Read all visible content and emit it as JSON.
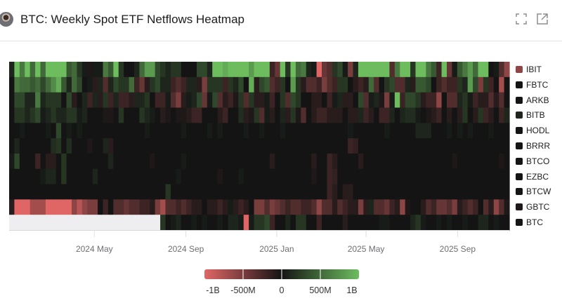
{
  "header": {
    "title": "BTC: Weekly Spot ETF Netflows Heatmap",
    "icons": [
      "avatar",
      "fullscreen-icon",
      "open-external-icon"
    ]
  },
  "colors": {
    "negative": "#e06666",
    "zero": "#141414",
    "positive": "#6dbd5f",
    "missing": "#eeeef0"
  },
  "chart_data": {
    "type": "heatmap",
    "title": "BTC: Weekly Spot ETF Netflows Heatmap",
    "x_start_week": "2024-01-11",
    "x_interval": "weekly",
    "x_ticks": [
      {
        "label": "2024 May",
        "date": "2024-05-01"
      },
      {
        "label": "2024 Sep",
        "date": "2024-09-01"
      },
      {
        "label": "2025 Jan",
        "date": "2025-01-01"
      },
      {
        "label": "2025 May",
        "date": "2025-05-01"
      },
      {
        "label": "2025 Sep",
        "date": "2025-09-01"
      }
    ],
    "value_unit": "USD millions",
    "color_range": [
      -1000,
      1000
    ],
    "colorbar_ticks": [
      {
        "label": "-1B",
        "value": -1000
      },
      {
        "label": "-500M",
        "value": -500
      },
      {
        "label": "0",
        "value": 0
      },
      {
        "label": "500M",
        "value": 500
      },
      {
        "label": "1B",
        "value": 1000
      }
    ],
    "legend_position": "right",
    "series": [
      {
        "name": "IBIT",
        "values": [
          100,
          1000,
          600,
          1000,
          500,
          1000,
          500,
          1000,
          1000,
          1000,
          1000,
          400,
          500,
          200,
          50,
          -50,
          50,
          50,
          600,
          400,
          1000,
          200,
          0,
          0,
          100,
          500,
          800,
          800,
          300,
          200,
          100,
          200,
          200,
          0,
          0,
          0,
          300,
          300,
          100,
          1000,
          1000,
          900,
          1000,
          1000,
          1000,
          1000,
          800,
          1000,
          1000,
          1000,
          -200,
          -400,
          1000,
          200,
          1000,
          500,
          600,
          100,
          50,
          -1000,
          -400,
          -300,
          200,
          300,
          50,
          -500,
          100,
          1000,
          1000,
          1000,
          1000,
          1000,
          1000,
          -300,
          600,
          1000,
          1000,
          200,
          1000,
          1000,
          600,
          400,
          -200,
          1000,
          -400,
          50,
          400,
          600,
          800,
          500,
          1000,
          1000,
          0,
          50,
          -300,
          -600
        ]
      },
      {
        "name": "FBTC",
        "values": [
          0,
          600,
          500,
          500,
          400,
          500,
          300,
          500,
          700,
          900,
          400,
          100,
          500,
          300,
          0,
          50,
          -100,
          100,
          -300,
          100,
          300,
          200,
          200,
          500,
          -200,
          -400,
          -100,
          200,
          300,
          100,
          100,
          -200,
          -300,
          -200,
          100,
          100,
          -100,
          -500,
          200,
          200,
          200,
          -200,
          200,
          100,
          300,
          0,
          900,
          -100,
          300,
          400,
          -300,
          -200,
          200,
          0,
          800,
          200,
          -100,
          -300,
          -300,
          -200,
          -500,
          -300,
          -200,
          200,
          200,
          0,
          -100,
          -200,
          -100,
          500,
          -300,
          0,
          200,
          300,
          -300,
          -300,
          100,
          -100,
          400,
          400,
          300,
          0,
          -200,
          -300,
          -200,
          -200,
          200,
          100,
          800,
          300,
          -500,
          200,
          -200,
          0,
          -700,
          0
        ]
      },
      {
        "name": "ARKB",
        "values": [
          0,
          300,
          300,
          100,
          100,
          600,
          100,
          200,
          200,
          200,
          0,
          300,
          -100,
          0,
          100,
          -200,
          100,
          -100,
          200,
          -200,
          100,
          -200,
          -200,
          -100,
          100,
          100,
          200,
          0,
          -200,
          -200,
          50,
          -300,
          -500,
          -100,
          50,
          100,
          300,
          -400,
          50,
          300,
          -300,
          -100,
          -200,
          -50,
          200,
          -300,
          200,
          -100,
          -100,
          50,
          -200,
          0,
          200,
          -300,
          300,
          200,
          0,
          0,
          -100,
          -100,
          0,
          -200,
          50,
          100,
          -100,
          -100,
          0,
          300,
          -300,
          50,
          100,
          -50,
          -500,
          50,
          1000,
          -200,
          300,
          300,
          200,
          -100,
          -200,
          -200,
          -600,
          0,
          -300,
          -300,
          100,
          200,
          50,
          -200,
          -100,
          -100,
          -300,
          -100,
          -300,
          0
        ]
      },
      {
        "name": "BITB",
        "values": [
          0,
          200,
          200,
          100,
          200,
          300,
          50,
          100,
          200,
          100,
          100,
          200,
          200,
          50,
          100,
          0,
          0,
          0,
          -50,
          -50,
          0,
          200,
          0,
          0,
          0,
          200,
          100,
          50,
          0,
          -100,
          -50,
          0,
          -50,
          -50,
          -100,
          -200,
          -200,
          0,
          0,
          0,
          -100,
          -200,
          0,
          0,
          150,
          -100,
          -50,
          200,
          -300,
          50,
          -100,
          0,
          100,
          -100,
          200,
          -50,
          -300,
          0,
          -100,
          -200,
          -200,
          -100,
          -100,
          -100,
          0,
          -100,
          -100,
          100,
          -200,
          -100,
          0,
          -200,
          -200,
          100,
          0,
          100,
          150,
          150,
          50,
          0,
          -50,
          -100,
          -200,
          0,
          -100,
          0,
          -100,
          200,
          0,
          -100,
          200,
          -200,
          -100,
          0,
          -200,
          100
        ]
      },
      {
        "name": "HODL",
        "values": [
          0,
          0,
          50,
          0,
          0,
          0,
          0,
          50,
          0,
          300,
          0,
          50,
          0,
          50,
          0,
          0,
          0,
          0,
          0,
          0,
          0,
          0,
          0,
          0,
          0,
          0,
          50,
          0,
          0,
          0,
          0,
          0,
          0,
          50,
          0,
          0,
          0,
          0,
          50,
          0,
          50,
          0,
          0,
          0,
          0,
          50,
          0,
          0,
          50,
          0,
          0,
          0,
          50,
          0,
          0,
          0,
          0,
          0,
          0,
          0,
          0,
          0,
          0,
          0,
          0,
          50,
          0,
          0,
          0,
          0,
          0,
          0,
          50,
          0,
          0,
          0,
          0,
          0,
          100,
          100,
          100,
          0,
          0,
          0,
          50,
          0,
          50,
          0,
          50,
          0,
          0,
          0,
          50,
          0,
          0,
          0
        ]
      },
      {
        "name": "BRRR",
        "values": [
          0,
          100,
          0,
          0,
          0,
          0,
          0,
          0,
          150,
          200,
          0,
          150,
          0,
          0,
          0,
          -50,
          0,
          0,
          100,
          -100,
          0,
          0,
          0,
          0,
          0,
          0,
          0,
          0,
          0,
          0,
          0,
          0,
          0,
          0,
          0,
          0,
          0,
          0,
          0,
          0,
          0,
          0,
          0,
          0,
          0,
          0,
          0,
          0,
          0,
          0,
          0,
          0,
          0,
          0,
          0,
          0,
          0,
          0,
          0,
          0,
          0,
          0,
          0,
          0,
          0,
          -200,
          -150,
          0,
          0,
          0,
          0,
          0,
          0,
          0,
          0,
          0,
          0,
          0,
          0,
          0,
          0,
          0,
          0,
          0,
          0,
          0,
          0,
          0,
          0,
          0,
          0,
          0,
          0,
          0,
          0,
          0
        ]
      },
      {
        "name": "BTCO",
        "values": [
          50,
          300,
          0,
          0,
          0,
          -200,
          0,
          -100,
          -100,
          0,
          200,
          0,
          0,
          0,
          0,
          0,
          0,
          0,
          0,
          100,
          0,
          0,
          0,
          0,
          0,
          0,
          0,
          -50,
          0,
          0,
          0,
          0,
          0,
          50,
          0,
          0,
          0,
          0,
          0,
          0,
          0,
          0,
          0,
          0,
          0,
          0,
          0,
          0,
          0,
          0,
          -100,
          0,
          0,
          0,
          0,
          0,
          0,
          0,
          -100,
          0,
          0,
          -200,
          -100,
          0,
          0,
          0,
          0,
          -100,
          0,
          0,
          0,
          0,
          0,
          0,
          0,
          0,
          0,
          0,
          0,
          0,
          0,
          0,
          0,
          0,
          0,
          -50,
          0,
          0,
          0,
          0,
          0,
          0,
          0,
          0,
          -50,
          0
        ]
      },
      {
        "name": "EZBC",
        "values": [
          0,
          0,
          0,
          0,
          0,
          0,
          50,
          100,
          100,
          0,
          200,
          0,
          0,
          0,
          0,
          0,
          100,
          0,
          0,
          0,
          0,
          0,
          0,
          0,
          0,
          0,
          0,
          0,
          0,
          0,
          0,
          0,
          50,
          0,
          0,
          0,
          0,
          0,
          0,
          0,
          -50,
          0,
          0,
          0,
          50,
          0,
          0,
          0,
          0,
          0,
          0,
          0,
          0,
          0,
          0,
          0,
          0,
          0,
          -50,
          0,
          0,
          -200,
          -150,
          0,
          0,
          0,
          0,
          0,
          0,
          0,
          0,
          0,
          0,
          0,
          0,
          0,
          0,
          0,
          0,
          0,
          0,
          0,
          0,
          0,
          0,
          0,
          0,
          0,
          0,
          0,
          0,
          0,
          0,
          0,
          0,
          0
        ]
      },
      {
        "name": "BTCW",
        "values": [
          0,
          0,
          0,
          0,
          0,
          0,
          0,
          0,
          0,
          0,
          0,
          0,
          0,
          0,
          0,
          0,
          0,
          0,
          0,
          0,
          0,
          0,
          0,
          0,
          0,
          0,
          0,
          0,
          0,
          0,
          200,
          0,
          0,
          0,
          0,
          0,
          0,
          0,
          0,
          0,
          0,
          0,
          0,
          0,
          0,
          0,
          0,
          0,
          0,
          0,
          0,
          0,
          0,
          0,
          0,
          0,
          0,
          0,
          0,
          0,
          0,
          -200,
          -100,
          0,
          -100,
          -100,
          0,
          0,
          0,
          0,
          0,
          0,
          0,
          0,
          0,
          0,
          0,
          0,
          0,
          0,
          0,
          0,
          0,
          0,
          0,
          0,
          0,
          0,
          0,
          0,
          0,
          0,
          0,
          0,
          0,
          0
        ]
      },
      {
        "name": "GBTC",
        "values": [
          -100,
          -1000,
          -1000,
          -1000,
          -700,
          -700,
          -700,
          -1000,
          -1000,
          -1000,
          -1000,
          -1000,
          -600,
          -800,
          -600,
          -500,
          -500,
          0,
          -200,
          0,
          -300,
          -300,
          -400,
          -300,
          -300,
          -200,
          -200,
          -100,
          -500,
          -700,
          -300,
          -300,
          -200,
          -300,
          -200,
          -100,
          -100,
          0,
          -100,
          -100,
          -200,
          -100,
          50,
          -100,
          -200,
          -100,
          0,
          -500,
          -500,
          -300,
          -500,
          -400,
          -300,
          -200,
          -300,
          -300,
          -200,
          -200,
          -300,
          -600,
          -300,
          -300,
          -100,
          -300,
          -200,
          -100,
          -100,
          -500,
          -100,
          100,
          -300,
          -300,
          -400,
          -200,
          -100,
          -600,
          -50,
          0,
          0,
          -100,
          -300,
          -200,
          -400,
          -400,
          -300,
          -500,
          -100,
          -200,
          -300,
          -200,
          0,
          -300,
          -100,
          -600,
          -300,
          -50
        ]
      },
      {
        "name": "BTC",
        "values": [
          null,
          null,
          null,
          null,
          null,
          null,
          null,
          null,
          null,
          null,
          null,
          null,
          null,
          null,
          null,
          null,
          null,
          null,
          null,
          null,
          null,
          null,
          null,
          null,
          null,
          null,
          null,
          null,
          null,
          200,
          0,
          50,
          100,
          0,
          0,
          50,
          0,
          50,
          0,
          0,
          50,
          0,
          100,
          100,
          50,
          -1000,
          50,
          200,
          200,
          300,
          -200,
          0,
          0,
          100,
          0,
          200,
          200,
          0,
          0,
          -200,
          0,
          0,
          0,
          0,
          -100,
          0,
          0,
          0,
          0,
          0,
          0,
          50,
          50,
          0,
          0,
          0,
          0,
          100,
          200,
          50,
          0,
          0,
          50,
          0,
          50,
          0,
          0,
          50,
          0,
          0,
          100,
          100,
          0,
          50,
          0,
          0
        ]
      }
    ]
  }
}
